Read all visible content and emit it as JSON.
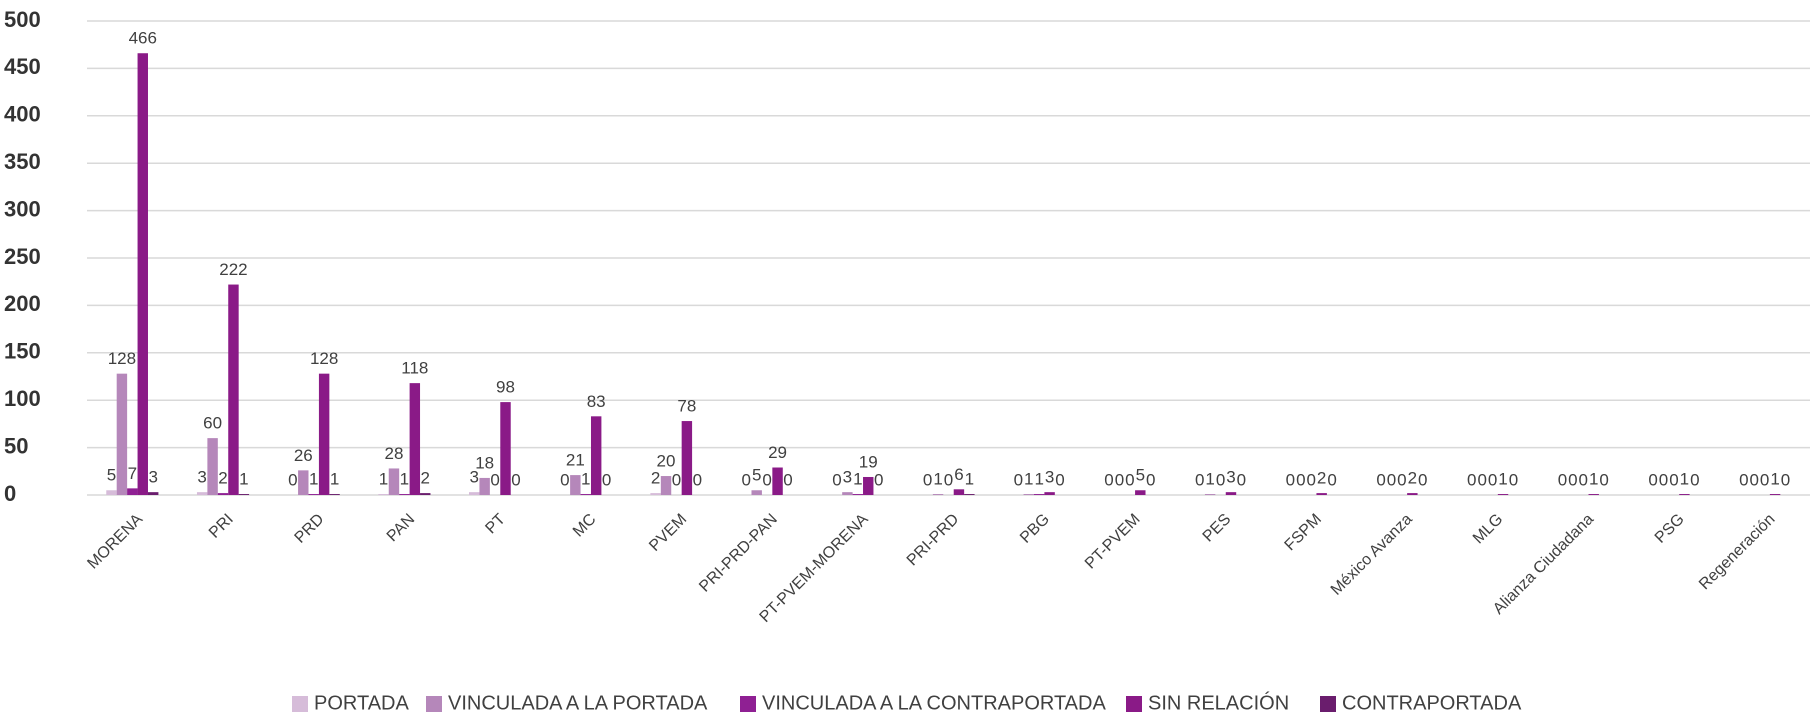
{
  "chart_data": {
    "type": "bar",
    "categories": [
      "MORENA",
      "PRI",
      "PRD",
      "PAN",
      "PT",
      "MC",
      "PVEM",
      "PRI-PRD-PAN",
      "PT-PVEM-MORENA",
      "PRI-PRD",
      "PBG",
      "PT-PVEM",
      "PES",
      "FSPM",
      "México Avanza",
      "MLG",
      "Alianza Ciudadana",
      "PSG",
      "Regeneración"
    ],
    "series": [
      {
        "name": "PORTADA",
        "color": "#d6bcd9",
        "values": [
          5,
          3,
          0,
          1,
          3,
          0,
          2,
          0,
          0,
          0,
          0,
          0,
          0,
          0,
          0,
          0,
          0,
          0,
          0
        ]
      },
      {
        "name": "VINCULADA A LA PORTADA",
        "color": "#b587ba",
        "values": [
          128,
          60,
          26,
          28,
          18,
          21,
          20,
          5,
          3,
          1,
          1,
          0,
          1,
          0,
          0,
          0,
          0,
          0,
          0
        ]
      },
      {
        "name": "VINCULADA A LA CONTRAPORTADA",
        "color": "#8f2093",
        "values": [
          7,
          2,
          1,
          1,
          0,
          1,
          0,
          0,
          1,
          0,
          1,
          0,
          0,
          0,
          0,
          0,
          0,
          0,
          0
        ]
      },
      {
        "name": "SIN RELACIÓN",
        "color": "#8a1a87",
        "values": [
          466,
          222,
          128,
          118,
          98,
          83,
          78,
          29,
          19,
          6,
          3,
          5,
          3,
          2,
          2,
          1,
          1,
          1,
          1
        ]
      },
      {
        "name": "CONTRAPORTADA",
        "color": "#6a1d6d",
        "values": [
          3,
          1,
          1,
          2,
          0,
          0,
          0,
          0,
          0,
          1,
          0,
          0,
          0,
          0,
          0,
          0,
          0,
          0,
          0
        ]
      }
    ],
    "ylim": [
      0,
      500
    ],
    "yticks": [
      0,
      50,
      100,
      150,
      200,
      250,
      300,
      350,
      400,
      450,
      500
    ],
    "grid": true,
    "legend": "bottom"
  }
}
